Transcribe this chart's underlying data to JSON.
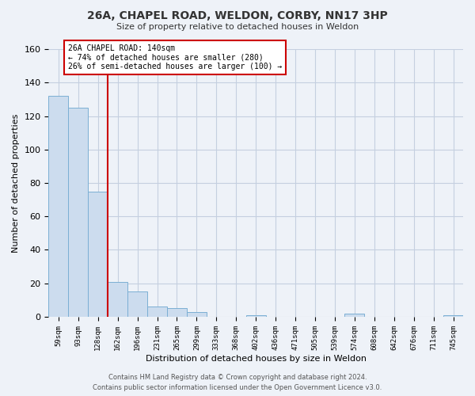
{
  "title": "26A, CHAPEL ROAD, WELDON, CORBY, NN17 3HP",
  "subtitle": "Size of property relative to detached houses in Weldon",
  "xlabel": "Distribution of detached houses by size in Weldon",
  "ylabel": "Number of detached properties",
  "bar_labels": [
    "59sqm",
    "93sqm",
    "128sqm",
    "162sqm",
    "196sqm",
    "231sqm",
    "265sqm",
    "299sqm",
    "333sqm",
    "368sqm",
    "402sqm",
    "436sqm",
    "471sqm",
    "505sqm",
    "539sqm",
    "574sqm",
    "608sqm",
    "642sqm",
    "676sqm",
    "711sqm",
    "745sqm"
  ],
  "bar_values": [
    132,
    125,
    75,
    21,
    15,
    6,
    5,
    3,
    0,
    0,
    1,
    0,
    0,
    0,
    0,
    2,
    0,
    0,
    0,
    0,
    1
  ],
  "bar_color": "#ccdcee",
  "bar_edge_color": "#7bafd4",
  "ylim": [
    0,
    160
  ],
  "yticks": [
    0,
    20,
    40,
    60,
    80,
    100,
    120,
    140,
    160
  ],
  "vline_color": "#cc0000",
  "annotation_title": "26A CHAPEL ROAD: 140sqm",
  "annotation_line1": "← 74% of detached houses are smaller (280)",
  "annotation_line2": "26% of semi-detached houses are larger (100) →",
  "annotation_box_color": "#ffffff",
  "annotation_box_edge": "#cc0000",
  "footer_line1": "Contains HM Land Registry data © Crown copyright and database right 2024.",
  "footer_line2": "Contains public sector information licensed under the Open Government Licence v3.0.",
  "bg_color": "#eef2f8",
  "plot_bg_color": "#eef2f8",
  "grid_color": "#c5cfe0"
}
